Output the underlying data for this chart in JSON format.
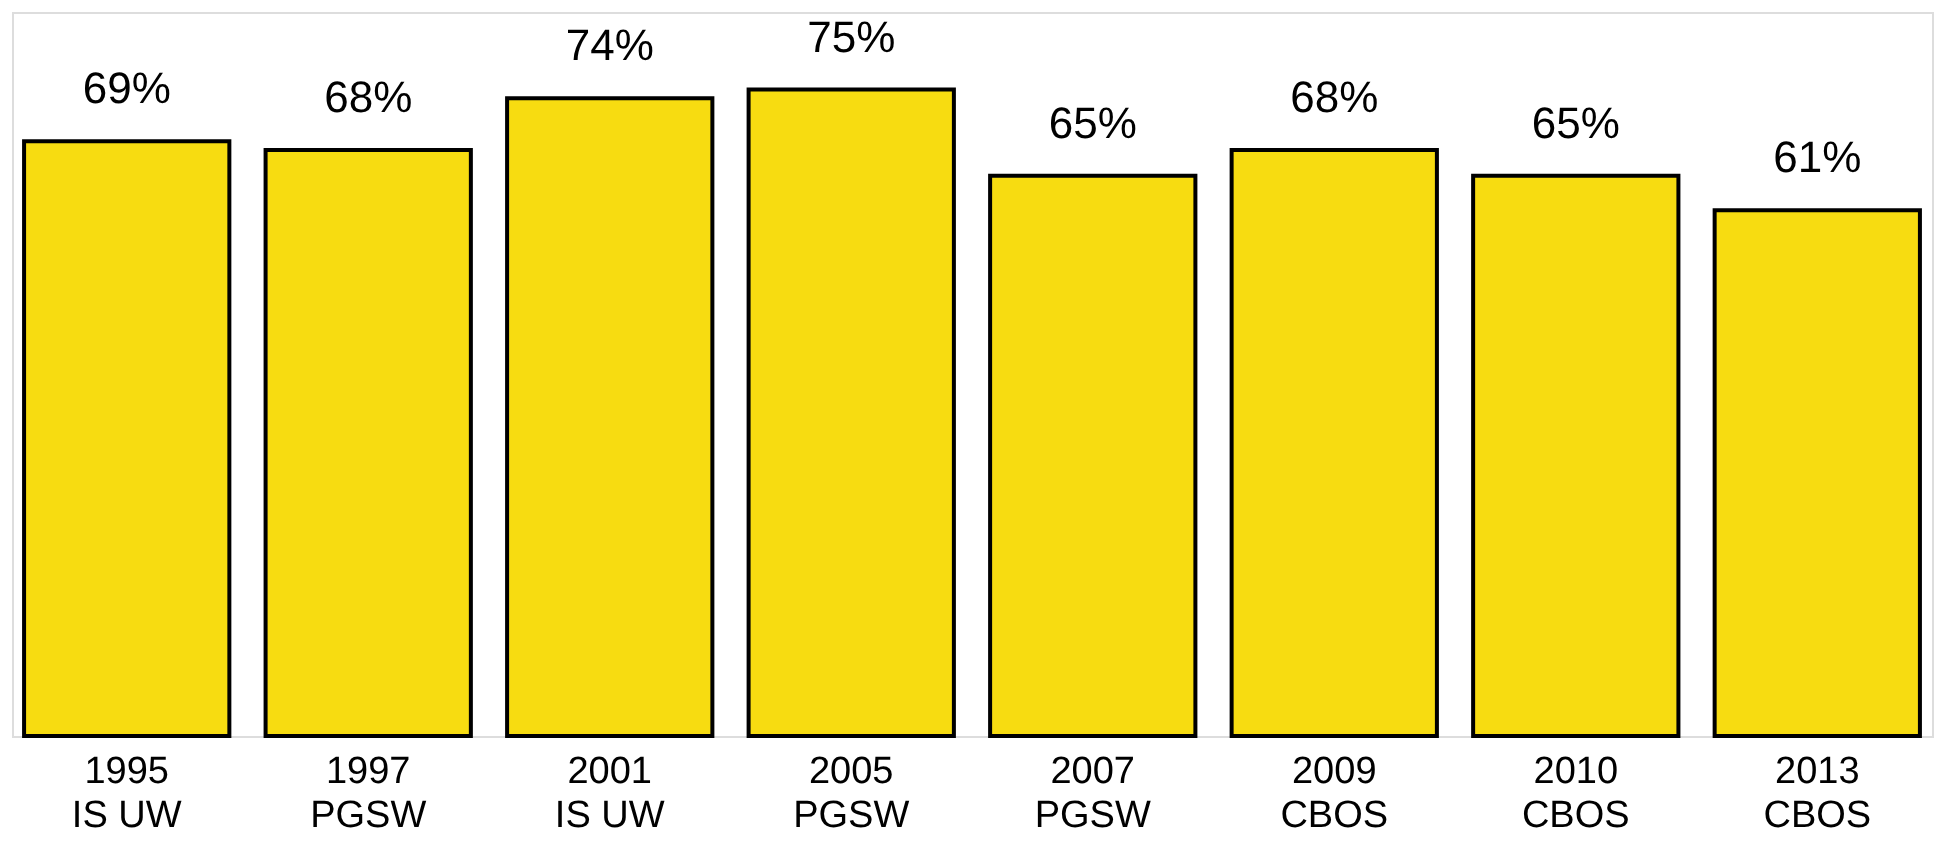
{
  "chart_data": {
    "type": "bar",
    "categories": [
      "1995 IS UW",
      "1997 PGSW",
      "2001 IS UW",
      "2005 PGSW",
      "2007 PGSW",
      "2009 CBOS",
      "2010 CBOS",
      "2013 CBOS"
    ],
    "values": [
      69,
      68,
      74,
      75,
      65,
      68,
      65,
      61
    ],
    "value_labels": [
      "69%",
      "68%",
      "74%",
      "75%",
      "65%",
      "68%",
      "65%",
      "61%"
    ],
    "color": "#f7dc11",
    "ylim": [
      0,
      84
    ],
    "tick_labels": "x",
    "grid": false
  }
}
